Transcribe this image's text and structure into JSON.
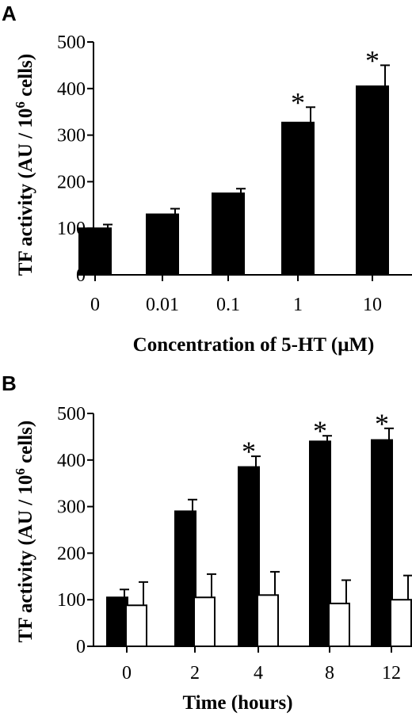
{
  "chart_data": [
    {
      "type": "bar",
      "panel_label": "A",
      "categories": [
        "0",
        "0.01",
        "0.1",
        "1",
        "10"
      ],
      "series": [
        {
          "values": [
            100,
            130,
            175,
            327,
            405
          ],
          "errors": [
            8,
            12,
            10,
            33,
            45
          ],
          "color": "#000000"
        }
      ],
      "significance": [
        "",
        "",
        "",
        "*",
        "*"
      ],
      "xlabel": "Concentration of 5-HT (μM)",
      "ylabel_main": "TF activity (AU / 10",
      "ylabel_sup": "6",
      "ylabel_tail": " cells)",
      "ylim": [
        0,
        500
      ],
      "yticks": [
        "0",
        "100",
        "200",
        "300",
        "400",
        "500"
      ],
      "grid": false
    },
    {
      "type": "bar",
      "panel_label": "B",
      "categories": [
        "0",
        "2",
        "4",
        "8",
        "12"
      ],
      "series": [
        {
          "values": [
            105,
            290,
            385,
            440,
            443
          ],
          "errors": [
            17,
            25,
            23,
            12,
            25
          ],
          "color": "#000000"
        },
        {
          "values": [
            88,
            105,
            110,
            92,
            100
          ],
          "errors": [
            50,
            50,
            50,
            50,
            52
          ],
          "color": "#ffffff"
        }
      ],
      "significance": [
        "",
        "",
        "*",
        "*",
        "*"
      ],
      "xlabel": "Time (hours)",
      "ylabel_main": "TF activity (AU / 10",
      "ylabel_sup": "6",
      "ylabel_tail": " cells)",
      "ylim": [
        0,
        500
      ],
      "yticks": [
        "0",
        "100",
        "200",
        "300",
        "400",
        "500"
      ],
      "grid": false
    }
  ]
}
